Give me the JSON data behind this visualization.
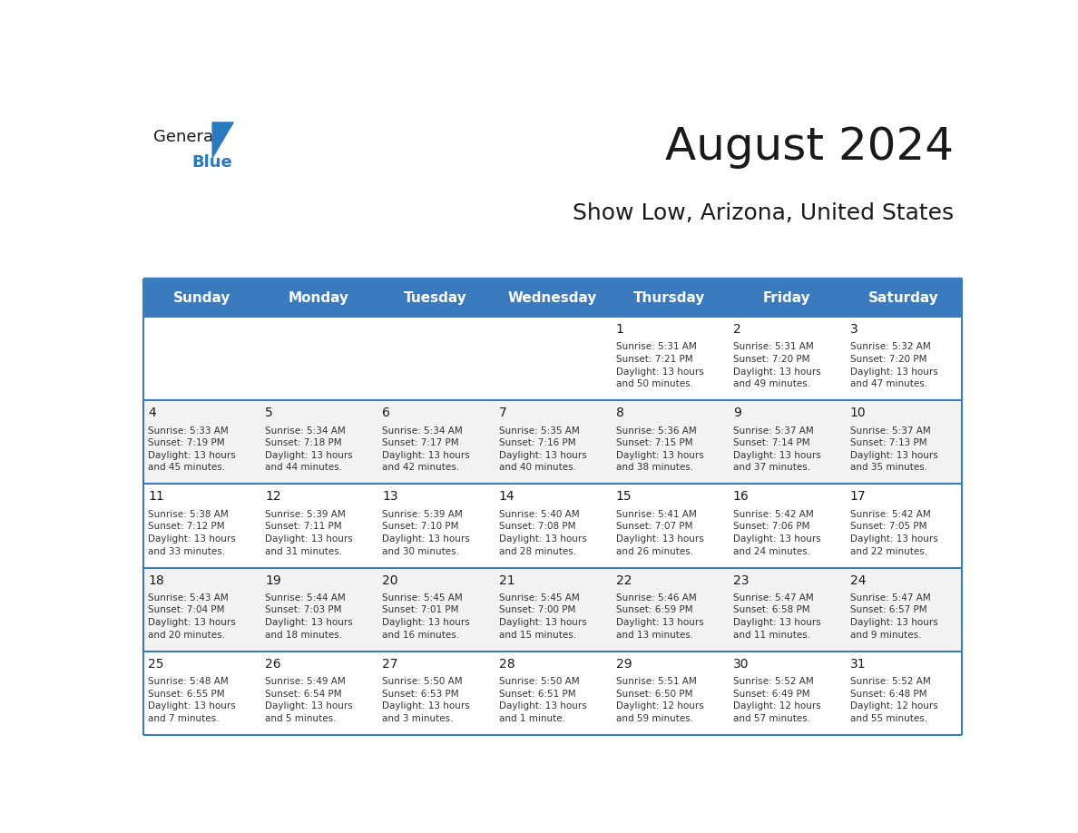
{
  "title": "August 2024",
  "subtitle": "Show Low, Arizona, United States",
  "header_bg": "#3A7BBF",
  "header_text_color": "#FFFFFF",
  "header_font_size": 11,
  "day_names": [
    "Sunday",
    "Monday",
    "Tuesday",
    "Wednesday",
    "Thursday",
    "Friday",
    "Saturday"
  ],
  "title_font_size": 36,
  "subtitle_font_size": 18,
  "day_num_color": "#1a1a1a",
  "info_color": "#333333",
  "alt_row_bg": "#F2F2F2",
  "white_bg": "#FFFFFF",
  "logo_black": "#1a1a1a",
  "logo_blue": "#2a7abf",
  "weeks": [
    [
      {
        "day": "",
        "info": ""
      },
      {
        "day": "",
        "info": ""
      },
      {
        "day": "",
        "info": ""
      },
      {
        "day": "",
        "info": ""
      },
      {
        "day": "1",
        "info": "Sunrise: 5:31 AM\nSunset: 7:21 PM\nDaylight: 13 hours\nand 50 minutes."
      },
      {
        "day": "2",
        "info": "Sunrise: 5:31 AM\nSunset: 7:20 PM\nDaylight: 13 hours\nand 49 minutes."
      },
      {
        "day": "3",
        "info": "Sunrise: 5:32 AM\nSunset: 7:20 PM\nDaylight: 13 hours\nand 47 minutes."
      }
    ],
    [
      {
        "day": "4",
        "info": "Sunrise: 5:33 AM\nSunset: 7:19 PM\nDaylight: 13 hours\nand 45 minutes."
      },
      {
        "day": "5",
        "info": "Sunrise: 5:34 AM\nSunset: 7:18 PM\nDaylight: 13 hours\nand 44 minutes."
      },
      {
        "day": "6",
        "info": "Sunrise: 5:34 AM\nSunset: 7:17 PM\nDaylight: 13 hours\nand 42 minutes."
      },
      {
        "day": "7",
        "info": "Sunrise: 5:35 AM\nSunset: 7:16 PM\nDaylight: 13 hours\nand 40 minutes."
      },
      {
        "day": "8",
        "info": "Sunrise: 5:36 AM\nSunset: 7:15 PM\nDaylight: 13 hours\nand 38 minutes."
      },
      {
        "day": "9",
        "info": "Sunrise: 5:37 AM\nSunset: 7:14 PM\nDaylight: 13 hours\nand 37 minutes."
      },
      {
        "day": "10",
        "info": "Sunrise: 5:37 AM\nSunset: 7:13 PM\nDaylight: 13 hours\nand 35 minutes."
      }
    ],
    [
      {
        "day": "11",
        "info": "Sunrise: 5:38 AM\nSunset: 7:12 PM\nDaylight: 13 hours\nand 33 minutes."
      },
      {
        "day": "12",
        "info": "Sunrise: 5:39 AM\nSunset: 7:11 PM\nDaylight: 13 hours\nand 31 minutes."
      },
      {
        "day": "13",
        "info": "Sunrise: 5:39 AM\nSunset: 7:10 PM\nDaylight: 13 hours\nand 30 minutes."
      },
      {
        "day": "14",
        "info": "Sunrise: 5:40 AM\nSunset: 7:08 PM\nDaylight: 13 hours\nand 28 minutes."
      },
      {
        "day": "15",
        "info": "Sunrise: 5:41 AM\nSunset: 7:07 PM\nDaylight: 13 hours\nand 26 minutes."
      },
      {
        "day": "16",
        "info": "Sunrise: 5:42 AM\nSunset: 7:06 PM\nDaylight: 13 hours\nand 24 minutes."
      },
      {
        "day": "17",
        "info": "Sunrise: 5:42 AM\nSunset: 7:05 PM\nDaylight: 13 hours\nand 22 minutes."
      }
    ],
    [
      {
        "day": "18",
        "info": "Sunrise: 5:43 AM\nSunset: 7:04 PM\nDaylight: 13 hours\nand 20 minutes."
      },
      {
        "day": "19",
        "info": "Sunrise: 5:44 AM\nSunset: 7:03 PM\nDaylight: 13 hours\nand 18 minutes."
      },
      {
        "day": "20",
        "info": "Sunrise: 5:45 AM\nSunset: 7:01 PM\nDaylight: 13 hours\nand 16 minutes."
      },
      {
        "day": "21",
        "info": "Sunrise: 5:45 AM\nSunset: 7:00 PM\nDaylight: 13 hours\nand 15 minutes."
      },
      {
        "day": "22",
        "info": "Sunrise: 5:46 AM\nSunset: 6:59 PM\nDaylight: 13 hours\nand 13 minutes."
      },
      {
        "day": "23",
        "info": "Sunrise: 5:47 AM\nSunset: 6:58 PM\nDaylight: 13 hours\nand 11 minutes."
      },
      {
        "day": "24",
        "info": "Sunrise: 5:47 AM\nSunset: 6:57 PM\nDaylight: 13 hours\nand 9 minutes."
      }
    ],
    [
      {
        "day": "25",
        "info": "Sunrise: 5:48 AM\nSunset: 6:55 PM\nDaylight: 13 hours\nand 7 minutes."
      },
      {
        "day": "26",
        "info": "Sunrise: 5:49 AM\nSunset: 6:54 PM\nDaylight: 13 hours\nand 5 minutes."
      },
      {
        "day": "27",
        "info": "Sunrise: 5:50 AM\nSunset: 6:53 PM\nDaylight: 13 hours\nand 3 minutes."
      },
      {
        "day": "28",
        "info": "Sunrise: 5:50 AM\nSunset: 6:51 PM\nDaylight: 13 hours\nand 1 minute."
      },
      {
        "day": "29",
        "info": "Sunrise: 5:51 AM\nSunset: 6:50 PM\nDaylight: 12 hours\nand 59 minutes."
      },
      {
        "day": "30",
        "info": "Sunrise: 5:52 AM\nSunset: 6:49 PM\nDaylight: 12 hours\nand 57 minutes."
      },
      {
        "day": "31",
        "info": "Sunrise: 5:52 AM\nSunset: 6:48 PM\nDaylight: 12 hours\nand 55 minutes."
      }
    ]
  ]
}
